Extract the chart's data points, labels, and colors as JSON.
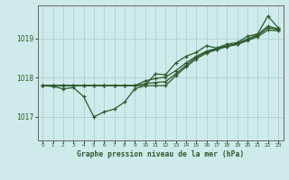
{
  "title": "Graphe pression niveau de la mer (hPa)",
  "background_color": "#ceeaea",
  "grid_color": "#add4d4",
  "line_color": "#2d5a2d",
  "x_ticks": [
    0,
    1,
    2,
    3,
    4,
    5,
    6,
    7,
    8,
    9,
    10,
    11,
    12,
    13,
    14,
    15,
    16,
    17,
    18,
    19,
    20,
    21,
    22,
    23
  ],
  "ylim": [
    1016.4,
    1019.85
  ],
  "yticks": [
    1017,
    1018,
    1019
  ],
  "line1": [
    1017.8,
    1017.78,
    1017.72,
    1017.75,
    1017.52,
    1017.0,
    1017.13,
    1017.2,
    1017.38,
    1017.72,
    1017.8,
    1018.1,
    1018.08,
    1018.38,
    1018.55,
    1018.65,
    1018.82,
    1018.76,
    1018.86,
    1018.9,
    1019.06,
    1019.12,
    1019.58,
    1019.28
  ],
  "line2": [
    1017.8,
    1017.8,
    1017.8,
    1017.8,
    1017.8,
    1017.8,
    1017.8,
    1017.8,
    1017.8,
    1017.8,
    1017.8,
    1017.8,
    1017.8,
    1018.05,
    1018.28,
    1018.48,
    1018.63,
    1018.72,
    1018.8,
    1018.85,
    1018.95,
    1019.05,
    1019.22,
    1019.2
  ],
  "line3": [
    1017.8,
    1017.8,
    1017.8,
    1017.8,
    1017.8,
    1017.8,
    1017.8,
    1017.8,
    1017.8,
    1017.8,
    1017.85,
    1017.88,
    1017.9,
    1018.1,
    1018.32,
    1018.52,
    1018.66,
    1018.73,
    1018.8,
    1018.87,
    1018.98,
    1019.08,
    1019.28,
    1019.23
  ],
  "line4": [
    1017.8,
    1017.8,
    1017.8,
    1017.8,
    1017.8,
    1017.8,
    1017.8,
    1017.8,
    1017.8,
    1017.8,
    1017.92,
    1017.98,
    1018.02,
    1018.18,
    1018.38,
    1018.55,
    1018.68,
    1018.75,
    1018.82,
    1018.88,
    1018.99,
    1019.1,
    1019.32,
    1019.25
  ]
}
